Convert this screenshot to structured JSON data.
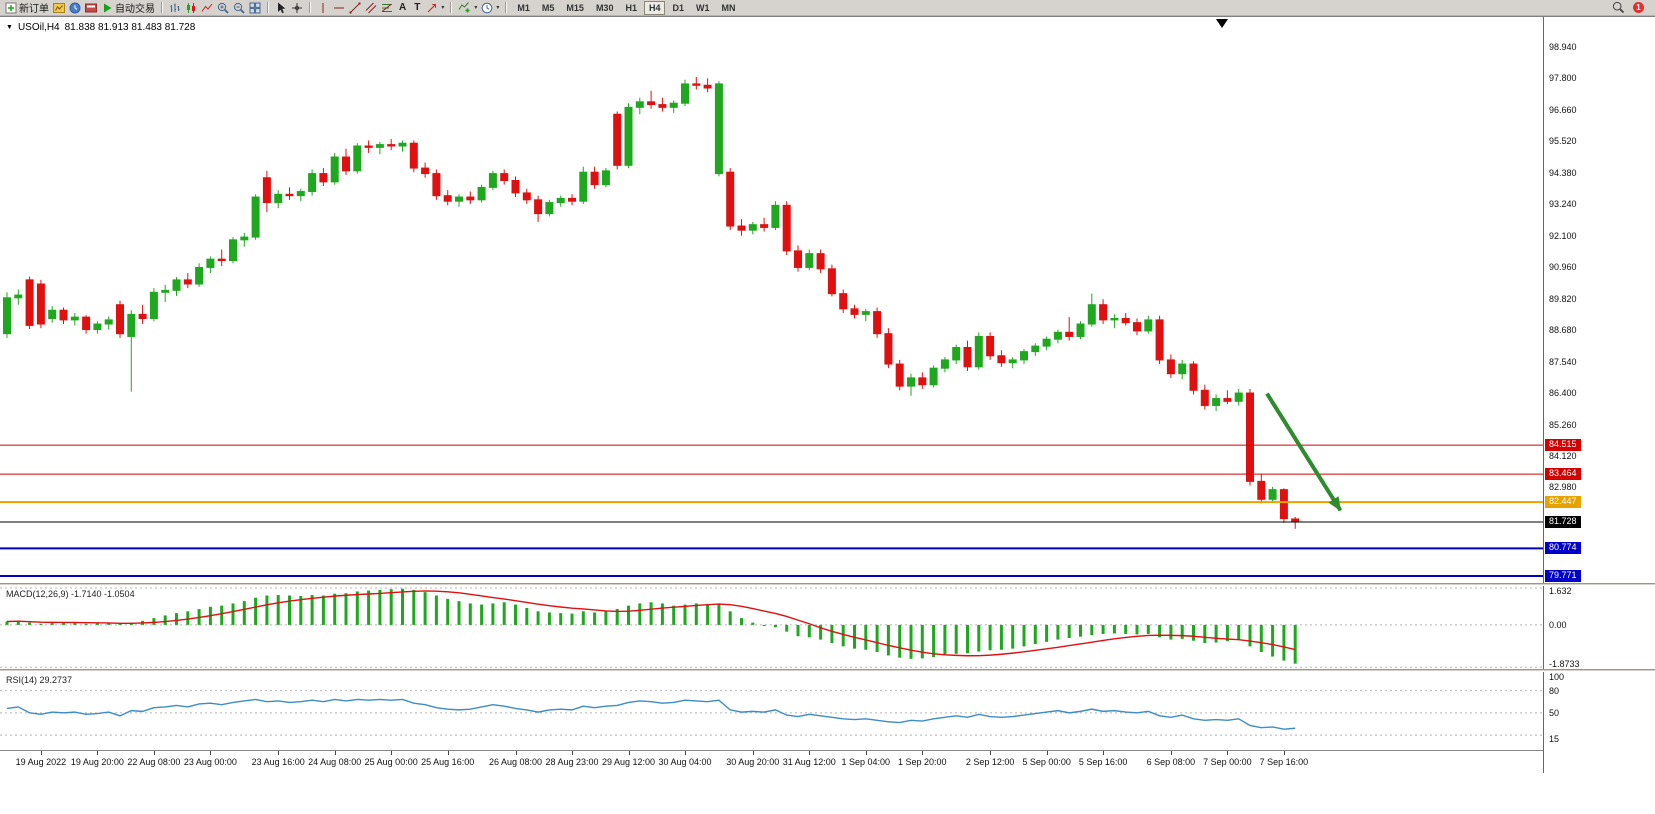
{
  "toolbar": {
    "new_order": "新订单",
    "auto_trading": "自动交易",
    "text_tool": "A",
    "label_tool": "T",
    "timeframes": [
      "M1",
      "M5",
      "M15",
      "M30",
      "H1",
      "H4",
      "D1",
      "W1",
      "MN"
    ],
    "active_timeframe": "H4",
    "notification_count": "1"
  },
  "icons": {
    "caret": "▾",
    "symbol_caret": "▼"
  },
  "chart": {
    "symbol_title": "USOil,H4",
    "ohlc": "81.838 81.913 81.483 81.728"
  },
  "chart_data": [
    {
      "type": "candlestick",
      "symbol": "USOil",
      "timeframe": "H4",
      "last_ohlc": {
        "open": 81.838,
        "high": 81.913,
        "low": 81.483,
        "close": 81.728
      },
      "ylim": [
        79.518,
        100.023
      ],
      "y_ticks": [
        "98.940",
        "97.800",
        "96.660",
        "95.520",
        "94.380",
        "93.240",
        "92.100",
        "90.960",
        "89.820",
        "88.680",
        "87.540",
        "86.400",
        "85.260",
        "84.120",
        "82.980"
      ],
      "x_ticks": {
        "labels": [
          "19 Aug 2022",
          "19 Aug 20:00",
          "22 Aug 08:00",
          "23 Aug 00:00",
          "23 Aug 16:00",
          "24 Aug 08:00",
          "25 Aug 00:00",
          "25 Aug 16:00",
          "26 Aug 08:00",
          "28 Aug 23:00",
          "29 Aug 12:00",
          "30 Aug 04:00",
          "30 Aug 20:00",
          "31 Aug 12:00",
          "1 Sep 04:00",
          "1 Sep 20:00",
          "2 Sep 12:00",
          "5 Sep 00:00",
          "5 Sep 16:00",
          "6 Sep 08:00",
          "7 Sep 00:00",
          "7 Sep 16:00"
        ],
        "bar_indexes": [
          3,
          8,
          13,
          18,
          24,
          29,
          34,
          39,
          45,
          50,
          55,
          60,
          66,
          71,
          76,
          81,
          87,
          92,
          97,
          103,
          108,
          113
        ]
      },
      "hlines": [
        {
          "price": 84.515,
          "label": "84.515",
          "color": "#D40000",
          "width": 1
        },
        {
          "price": 83.464,
          "label": "83.464",
          "color": "#D40000",
          "width": 1
        },
        {
          "price": 82.447,
          "label": "82.447",
          "color": "#E8A200",
          "width": 2
        },
        {
          "price": 81.728,
          "label": "81.728",
          "color": "#000000",
          "width": 1
        },
        {
          "price": 80.774,
          "label": "80.774",
          "color": "#0000C8",
          "width": 2
        },
        {
          "price": 79.771,
          "label": "79.771",
          "color": "#0000C8",
          "width": 2
        }
      ],
      "arrow": {
        "from_bar": 111.5,
        "from_price": 86.38,
        "to_bar": 118,
        "to_price": 82.15,
        "color": "#2E8B2E"
      },
      "colors": {
        "up": "#1FA81F",
        "down": "#E01010"
      },
      "candles": [
        [
          88.55,
          90.05,
          88.4,
          89.85
        ],
        [
          89.85,
          90.15,
          89.6,
          89.95
        ],
        [
          90.5,
          90.62,
          88.72,
          88.85
        ],
        [
          90.35,
          90.5,
          88.75,
          88.9
        ],
        [
          89.1,
          89.55,
          88.95,
          89.4
        ],
        [
          89.4,
          89.5,
          88.9,
          89.05
        ],
        [
          89.05,
          89.3,
          88.85,
          89.15
        ],
        [
          89.15,
          89.22,
          88.55,
          88.7
        ],
        [
          88.7,
          89.0,
          88.55,
          88.9
        ],
        [
          88.9,
          89.18,
          88.7,
          89.05
        ],
        [
          89.6,
          89.75,
          88.4,
          88.55
        ],
        [
          88.45,
          89.4,
          86.45,
          89.25
        ],
        [
          89.25,
          89.6,
          88.9,
          89.1
        ],
        [
          89.1,
          90.2,
          89.0,
          90.05
        ],
        [
          90.05,
          90.32,
          89.7,
          90.12
        ],
        [
          90.12,
          90.6,
          89.92,
          90.5
        ],
        [
          90.5,
          90.75,
          90.2,
          90.35
        ],
        [
          90.35,
          91.1,
          90.25,
          90.95
        ],
        [
          90.95,
          91.35,
          90.75,
          91.25
        ],
        [
          91.25,
          91.6,
          91.0,
          91.2
        ],
        [
          91.2,
          92.05,
          91.1,
          91.95
        ],
        [
          91.95,
          92.2,
          91.7,
          92.05
        ],
        [
          92.05,
          93.6,
          91.95,
          93.5
        ],
        [
          94.2,
          94.45,
          92.95,
          93.3
        ],
        [
          93.3,
          93.75,
          93.1,
          93.6
        ],
        [
          93.6,
          93.85,
          93.4,
          93.55
        ],
        [
          93.55,
          93.8,
          93.35,
          93.7
        ],
        [
          93.7,
          94.5,
          93.55,
          94.35
        ],
        [
          94.35,
          94.55,
          93.9,
          94.05
        ],
        [
          94.05,
          95.1,
          93.95,
          94.95
        ],
        [
          94.95,
          95.25,
          94.3,
          94.45
        ],
        [
          94.45,
          95.45,
          94.35,
          95.35
        ],
        [
          95.35,
          95.55,
          95.1,
          95.3
        ],
        [
          95.3,
          95.5,
          95.05,
          95.4
        ],
        [
          95.4,
          95.6,
          95.2,
          95.35
        ],
        [
          95.35,
          95.55,
          95.15,
          95.45
        ],
        [
          95.45,
          95.55,
          94.4,
          94.55
        ],
        [
          94.55,
          94.75,
          94.2,
          94.35
        ],
        [
          94.35,
          94.5,
          93.4,
          93.55
        ],
        [
          93.55,
          93.75,
          93.2,
          93.35
        ],
        [
          93.35,
          93.6,
          93.15,
          93.5
        ],
        [
          93.5,
          93.7,
          93.25,
          93.4
        ],
        [
          93.4,
          93.95,
          93.3,
          93.85
        ],
        [
          93.85,
          94.45,
          93.75,
          94.35
        ],
        [
          94.35,
          94.5,
          93.95,
          94.1
        ],
        [
          94.1,
          94.25,
          93.5,
          93.65
        ],
        [
          93.65,
          93.8,
          93.25,
          93.4
        ],
        [
          93.4,
          93.55,
          92.6,
          92.9
        ],
        [
          92.9,
          93.4,
          92.8,
          93.3
        ],
        [
          93.3,
          93.55,
          93.15,
          93.45
        ],
        [
          93.45,
          93.6,
          93.2,
          93.35
        ],
        [
          93.35,
          94.6,
          93.25,
          94.4
        ],
        [
          94.4,
          94.6,
          93.8,
          93.95
        ],
        [
          93.95,
          94.55,
          93.85,
          94.45
        ],
        [
          96.5,
          96.6,
          94.5,
          94.65
        ],
        [
          94.65,
          96.9,
          94.55,
          96.75
        ],
        [
          96.75,
          97.1,
          96.5,
          96.95
        ],
        [
          96.95,
          97.35,
          96.7,
          96.85
        ],
        [
          96.85,
          97.1,
          96.6,
          96.75
        ],
        [
          96.75,
          97.0,
          96.55,
          96.9
        ],
        [
          96.9,
          97.75,
          96.8,
          97.6
        ],
        [
          97.6,
          97.85,
          97.4,
          97.55
        ],
        [
          97.55,
          97.8,
          97.3,
          97.45
        ],
        [
          94.35,
          97.7,
          94.25,
          97.6
        ],
        [
          94.4,
          94.55,
          92.3,
          92.45
        ],
        [
          92.45,
          92.7,
          92.1,
          92.3
        ],
        [
          92.3,
          92.6,
          92.15,
          92.5
        ],
        [
          92.5,
          92.75,
          92.25,
          92.4
        ],
        [
          92.4,
          93.35,
          92.3,
          93.2
        ],
        [
          93.2,
          93.35,
          91.4,
          91.55
        ],
        [
          91.55,
          91.75,
          90.8,
          90.95
        ],
        [
          90.95,
          91.6,
          90.85,
          91.45
        ],
        [
          91.45,
          91.6,
          90.75,
          90.9
        ],
        [
          90.9,
          91.05,
          89.9,
          90.0
        ],
        [
          90.0,
          90.15,
          89.3,
          89.45
        ],
        [
          89.45,
          89.6,
          89.1,
          89.25
        ],
        [
          89.25,
          89.45,
          89.0,
          89.35
        ],
        [
          89.35,
          89.5,
          88.4,
          88.55
        ],
        [
          88.55,
          88.75,
          87.3,
          87.45
        ],
        [
          87.45,
          87.6,
          86.5,
          86.65
        ],
        [
          86.65,
          87.1,
          86.3,
          86.95
        ],
        [
          86.95,
          87.15,
          86.55,
          86.7
        ],
        [
          86.7,
          87.4,
          86.6,
          87.3
        ],
        [
          87.3,
          87.7,
          87.15,
          87.6
        ],
        [
          87.6,
          88.15,
          87.45,
          88.05
        ],
        [
          88.05,
          88.3,
          87.2,
          87.35
        ],
        [
          87.35,
          88.6,
          87.25,
          88.45
        ],
        [
          88.45,
          88.6,
          87.6,
          87.75
        ],
        [
          87.75,
          87.95,
          87.35,
          87.5
        ],
        [
          87.5,
          87.7,
          87.3,
          87.6
        ],
        [
          87.6,
          88.0,
          87.45,
          87.9
        ],
        [
          87.9,
          88.2,
          87.75,
          88.1
        ],
        [
          88.1,
          88.45,
          87.95,
          88.35
        ],
        [
          88.35,
          88.7,
          88.2,
          88.6
        ],
        [
          88.6,
          89.15,
          88.3,
          88.45
        ],
        [
          88.45,
          89.0,
          88.35,
          88.9
        ],
        [
          88.9,
          90.0,
          88.8,
          89.6
        ],
        [
          89.6,
          89.8,
          88.9,
          89.05
        ],
        [
          89.05,
          89.25,
          88.75,
          89.1
        ],
        [
          89.1,
          89.3,
          88.85,
          88.95
        ],
        [
          88.95,
          89.1,
          88.5,
          88.65
        ],
        [
          88.65,
          89.2,
          88.55,
          89.05
        ],
        [
          89.05,
          89.2,
          87.45,
          87.6
        ],
        [
          87.6,
          87.8,
          86.95,
          87.1
        ],
        [
          87.1,
          87.6,
          86.9,
          87.45
        ],
        [
          87.45,
          87.55,
          86.35,
          86.5
        ],
        [
          86.5,
          86.7,
          85.8,
          85.95
        ],
        [
          85.95,
          86.35,
          85.75,
          86.2
        ],
        [
          86.2,
          86.5,
          86.0,
          86.1
        ],
        [
          86.1,
          86.55,
          85.95,
          86.4
        ],
        [
          86.4,
          86.55,
          83.05,
          83.2
        ],
        [
          83.2,
          83.45,
          82.4,
          82.55
        ],
        [
          82.55,
          83.0,
          82.45,
          82.9
        ],
        [
          82.9,
          82.95,
          81.7,
          81.85
        ],
        [
          81.838,
          81.913,
          81.483,
          81.728
        ]
      ]
    },
    {
      "type": "bar",
      "name": "MACD",
      "label": "MACD(12,26,9) -1.7140 -1.0504",
      "main_value": -1.714,
      "signal_value": -1.0504,
      "signal_period": 9,
      "ylim": [
        -1.95,
        1.72
      ],
      "y_ticks": [
        {
          "v": 1.632,
          "label": "1.632"
        },
        {
          "v": 0,
          "label": "0.00"
        },
        {
          "v": -1.8733,
          "label": "-1.8733"
        }
      ],
      "colors": {
        "histogram": "#1FA81F",
        "signal": "#E01010"
      },
      "values": [
        0.15,
        0.18,
        0.1,
        0.05,
        0.08,
        0.1,
        0.08,
        0.05,
        0.06,
        0.08,
        0.05,
        0.1,
        0.18,
        0.3,
        0.42,
        0.52,
        0.6,
        0.7,
        0.8,
        0.85,
        0.95,
        1.05,
        1.2,
        1.3,
        1.32,
        1.3,
        1.28,
        1.32,
        1.3,
        1.38,
        1.4,
        1.48,
        1.52,
        1.55,
        1.58,
        1.6,
        1.55,
        1.45,
        1.3,
        1.15,
        1.05,
        0.95,
        0.9,
        0.95,
        1.0,
        0.9,
        0.75,
        0.6,
        0.55,
        0.52,
        0.5,
        0.6,
        0.55,
        0.6,
        0.7,
        0.85,
        0.95,
        1.0,
        0.95,
        0.85,
        0.9,
        0.95,
        0.9,
        0.95,
        0.6,
        0.3,
        0.1,
        -0.05,
        -0.1,
        -0.3,
        -0.5,
        -0.55,
        -0.65,
        -0.8,
        -0.95,
        -1.05,
        -1.1,
        -1.2,
        -1.35,
        -1.45,
        -1.5,
        -1.48,
        -1.42,
        -1.35,
        -1.28,
        -1.25,
        -1.18,
        -1.12,
        -1.1,
        -1.05,
        -0.95,
        -0.85,
        -0.75,
        -0.65,
        -0.58,
        -0.52,
        -0.45,
        -0.4,
        -0.38,
        -0.4,
        -0.42,
        -0.4,
        -0.55,
        -0.65,
        -0.62,
        -0.7,
        -0.8,
        -0.78,
        -0.72,
        -0.65,
        -0.95,
        -1.2,
        -1.4,
        -1.58,
        -1.714
      ]
    },
    {
      "type": "line",
      "name": "RSI",
      "label": "RSI(14) 29.2737",
      "value": 29.2737,
      "ylim": [
        0,
        105
      ],
      "levels": [
        80,
        50,
        20
      ],
      "y_ticks": [
        {
          "v": 100,
          "label": "100"
        },
        {
          "v": 80,
          "label": "80"
        },
        {
          "v": 50,
          "label": "50"
        },
        {
          "v": 15,
          "label": "15"
        }
      ],
      "colors": {
        "line": "#3C8CC8"
      },
      "values": [
        56,
        58,
        50,
        48,
        51,
        50,
        51,
        48,
        49,
        51,
        46,
        53,
        52,
        57,
        58,
        60,
        58,
        62,
        63,
        61,
        64,
        66,
        68,
        65,
        66,
        64,
        65,
        67,
        65,
        68,
        66,
        68,
        67,
        68,
        67,
        68,
        63,
        61,
        57,
        55,
        54,
        55,
        58,
        61,
        59,
        56,
        54,
        51,
        54,
        55,
        54,
        59,
        57,
        59,
        60,
        64,
        66,
        65,
        63,
        64,
        67,
        66,
        65,
        67,
        54,
        51,
        52,
        51,
        54,
        47,
        45,
        48,
        46,
        44,
        42,
        41,
        42,
        40,
        38,
        37,
        40,
        39,
        42,
        44,
        46,
        44,
        48,
        45,
        44,
        45,
        47,
        49,
        51,
        53,
        50,
        52,
        55,
        52,
        53,
        51,
        50,
        52,
        46,
        44,
        47,
        42,
        40,
        41,
        40,
        42,
        33,
        30,
        31,
        28,
        29.2737
      ]
    }
  ]
}
